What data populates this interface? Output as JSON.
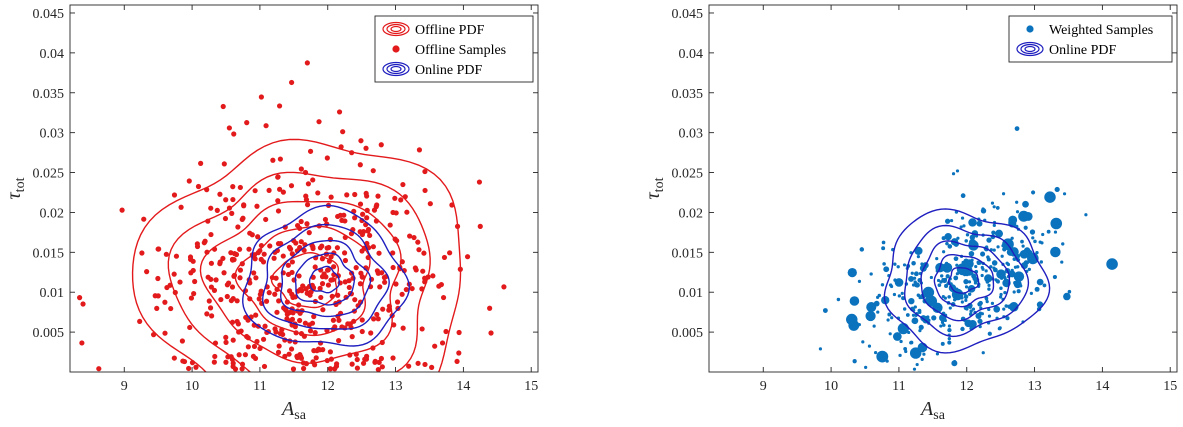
{
  "colors": {
    "offline": "#e31a1c",
    "online": "#1f1fbf",
    "weighted": "#0b72bd",
    "axis": "#262626",
    "background": "#ffffff"
  },
  "chart_data": [
    {
      "type": "scatter",
      "xlabel": "A",
      "xlabel_sub": "sa",
      "ylabel": "τ",
      "ylabel_sub": "tot",
      "xlim": [
        8.2,
        15.1
      ],
      "ylim": [
        0.0,
        0.046
      ],
      "xticks": [
        9,
        10,
        11,
        12,
        13,
        14,
        15
      ],
      "yticks": [
        "0.005",
        "0.01",
        "0.015",
        "0.02",
        "0.025",
        "0.03",
        "0.035",
        "0.04",
        "0.045"
      ],
      "grid": false,
      "legend_position": "top-right",
      "legend": [
        {
          "label": "Offline PDF",
          "kind": "contour",
          "color": "#e31a1c"
        },
        {
          "label": "Offline Samples",
          "kind": "dot",
          "color": "#e31a1c"
        },
        {
          "label": "Online PDF",
          "kind": "contour",
          "color": "#1f1fbf"
        }
      ],
      "series": [
        {
          "name": "Offline PDF",
          "kind": "contour",
          "color": "#e31a1c",
          "center": [
            11.7,
            0.0115
          ],
          "spread": [
            1.05,
            0.0075
          ],
          "levels": [
            0.45,
            0.9,
            1.35,
            1.8,
            2.3
          ]
        },
        {
          "name": "Offline Samples",
          "kind": "scatter",
          "color": "#e31a1c",
          "count": 560,
          "seed": 7,
          "center": [
            11.7,
            0.0112
          ],
          "spread": [
            1.05,
            0.0078
          ]
        },
        {
          "name": "Online PDF",
          "kind": "contour",
          "color": "#1f1fbf",
          "center": [
            11.95,
            0.0115
          ],
          "spread": [
            0.62,
            0.0045
          ],
          "levels": [
            0.35,
            0.7,
            1.05,
            1.45,
            1.9
          ]
        }
      ]
    },
    {
      "type": "scatter",
      "xlabel": "A",
      "xlabel_sub": "sa",
      "ylabel": "τ",
      "ylabel_sub": "tot",
      "xlim": [
        8.2,
        15.1
      ],
      "ylim": [
        0.0,
        0.046
      ],
      "xticks": [
        9,
        10,
        11,
        12,
        13,
        14,
        15
      ],
      "yticks": [
        "0.005",
        "0.01",
        "0.015",
        "0.02",
        "0.025",
        "0.03",
        "0.035",
        "0.04",
        "0.045"
      ],
      "grid": false,
      "legend_position": "top-right",
      "legend": [
        {
          "label": "Weighted Samples",
          "kind": "dot",
          "color": "#0b72bd"
        },
        {
          "label": "Online PDF",
          "kind": "contour",
          "color": "#1f1fbf"
        }
      ],
      "series": [
        {
          "name": "Weighted Samples",
          "kind": "weighted-scatter",
          "color": "#0b72bd",
          "count": 430,
          "seed": 21,
          "center": [
            11.95,
            0.0115
          ],
          "spread": [
            0.75,
            0.0048
          ],
          "correlation": 0.45
        },
        {
          "name": "Online PDF",
          "kind": "contour",
          "color": "#1f1fbf",
          "center": [
            11.95,
            0.0115
          ],
          "spread": [
            0.62,
            0.0045
          ],
          "levels": [
            0.35,
            0.7,
            1.05,
            1.45,
            1.9
          ]
        }
      ]
    }
  ]
}
